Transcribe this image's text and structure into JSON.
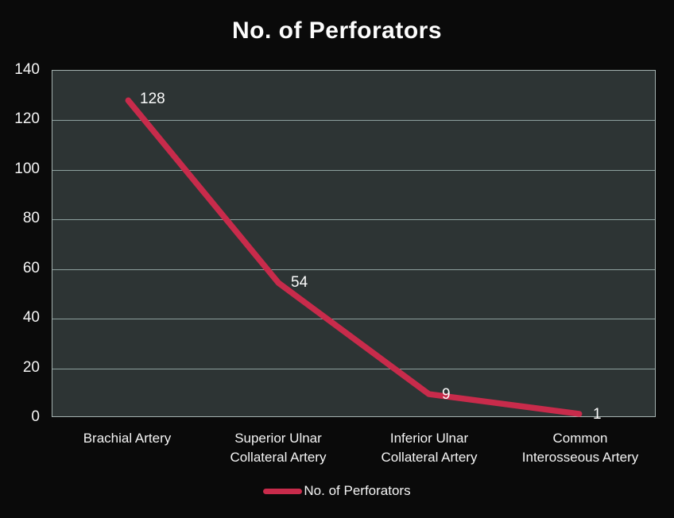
{
  "chart_data": {
    "type": "line",
    "title": "No. of Perforators",
    "categories": [
      "Brachial Artery",
      "Superior Ulnar\nCollateral Artery",
      "Inferior Ulnar\nCollateral Artery",
      "Common\nInterosseous Artery"
    ],
    "series": [
      {
        "name": "No. of Perforators",
        "values": [
          128,
          54,
          9,
          1
        ]
      }
    ],
    "data_labels": [
      "128",
      "54",
      "9",
      "1"
    ],
    "xlabel": "",
    "ylabel": "",
    "ylim": [
      0,
      140
    ],
    "yticks": [
      0,
      20,
      40,
      60,
      80,
      100,
      120,
      140
    ],
    "grid": true,
    "legend_position": "bottom"
  },
  "legend": {
    "label": "No. of Perforators"
  },
  "colors": {
    "background": "#0a0a0a",
    "plot_fill": "#2d3434",
    "gridline": "#8da09e",
    "plot_border": "#a4b1af",
    "line_accent": "#c82b4b",
    "text": "#f5f5f5"
  }
}
